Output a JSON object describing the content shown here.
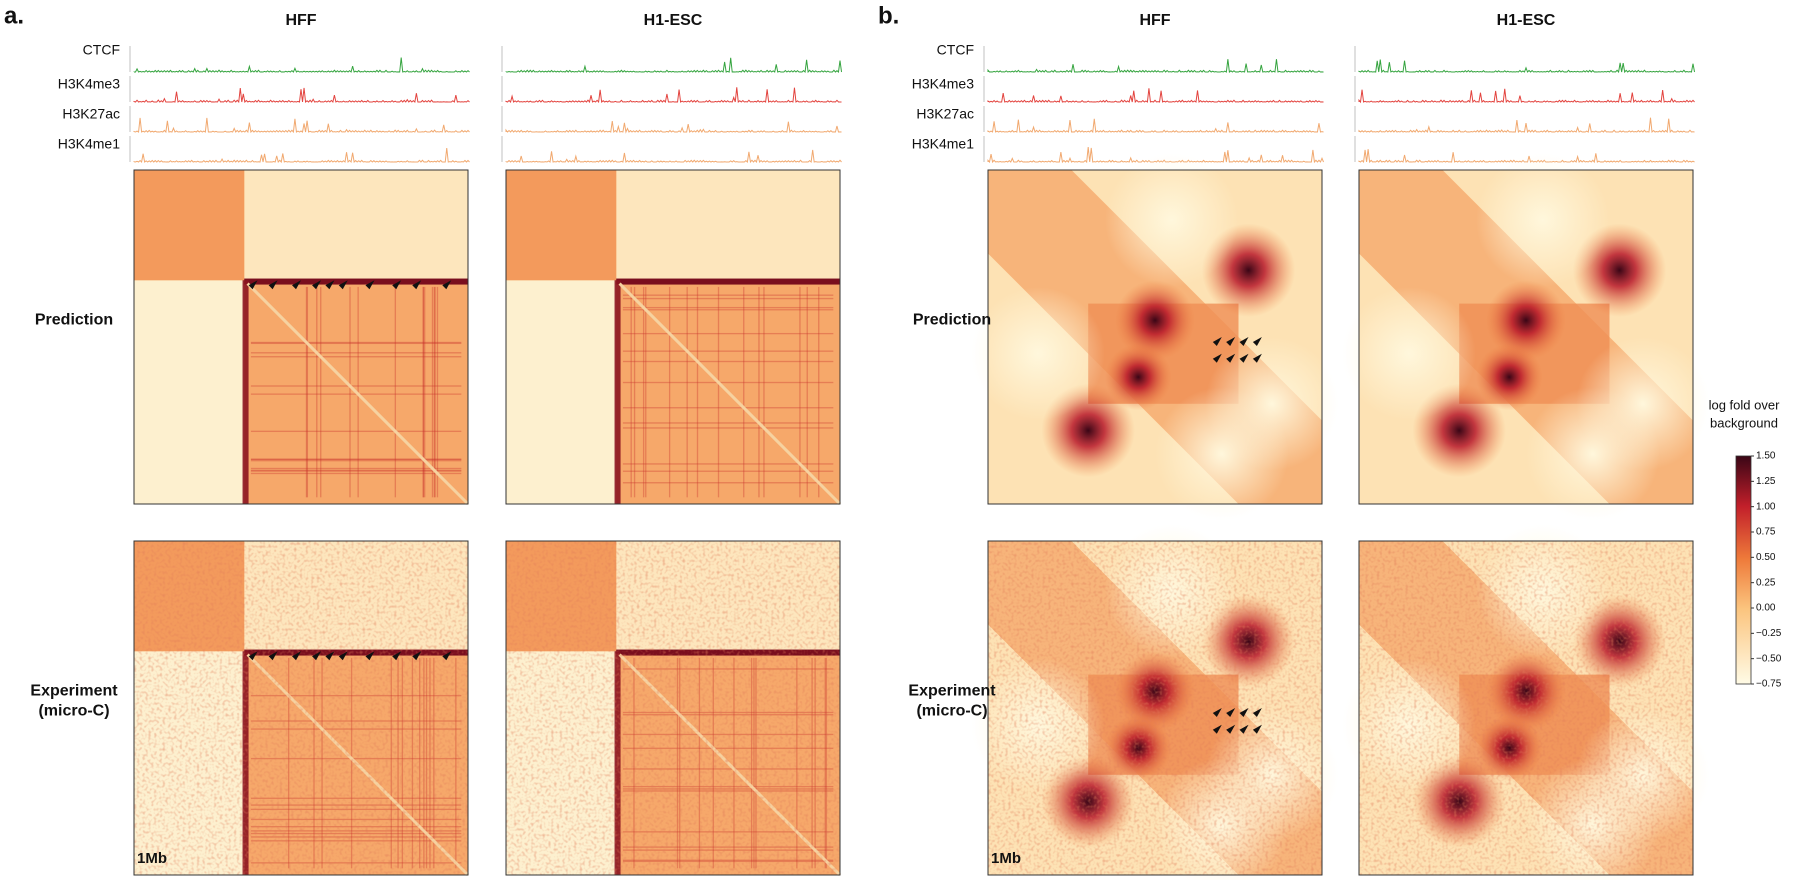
{
  "panels": [
    {
      "label": "a.",
      "columns": [
        "HFF",
        "H1-ESC"
      ],
      "tracks": [
        "CTCF",
        "H3K4me3",
        "H3K27ac",
        "H3K4me1"
      ],
      "rows": [
        [
          "Prediction"
        ],
        [
          "Experiment",
          "(micro-C)"
        ]
      ],
      "scale_bar": "1Mb"
    },
    {
      "label": "b.",
      "columns": [
        "HFF",
        "H1-ESC"
      ],
      "tracks": [
        "CTCF",
        "H3K4me3",
        "H3K27ac",
        "H3K4me1"
      ],
      "rows": [
        [
          "Prediction"
        ],
        [
          "Experiment",
          "(micro-C)"
        ]
      ],
      "scale_bar": "1Mb"
    }
  ],
  "colorbar": {
    "title": [
      "log fold over",
      "background"
    ],
    "lim": [
      -0.75,
      1.5
    ],
    "ticks": [
      {
        "value": 1.5,
        "label": "1.50"
      },
      {
        "value": 1.25,
        "label": "1.25"
      },
      {
        "value": 1.0,
        "label": "1.00"
      },
      {
        "value": 0.75,
        "label": "0.75"
      },
      {
        "value": 0.5,
        "label": "0.50"
      },
      {
        "value": 0.25,
        "label": "0.25"
      },
      {
        "value": 0.0,
        "label": "0.00"
      },
      {
        "value": -0.25,
        "label": "−0.25"
      },
      {
        "value": -0.5,
        "label": "−0.50"
      },
      {
        "value": -0.75,
        "label": "−0.75"
      }
    ]
  }
}
